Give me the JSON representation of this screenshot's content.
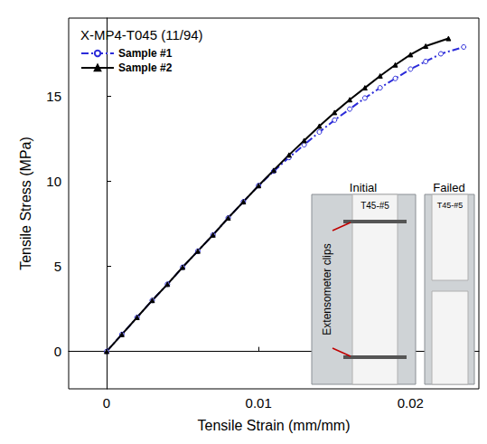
{
  "chart_data": {
    "type": "line",
    "title": "X-MP4-T045 (11/94)",
    "x_label": "Tensile Strain (mm/mm)",
    "y_label": "Tensile Stress (MPa)",
    "xlim": [
      -0.0025,
      0.0245
    ],
    "xticks": [
      0,
      0.01,
      0.02
    ],
    "ylim": [
      -2.2,
      19.6
    ],
    "yticks": [
      0,
      5,
      10,
      15
    ],
    "grid": false,
    "legend": "upper left",
    "annotations": [
      "Initial",
      "Failed",
      "Extensometer clips",
      "T45-#5",
      "T45-#5"
    ],
    "series": [
      {
        "name": "Sample #1",
        "color": "#2b2bd9",
        "marker": "circle",
        "line_style": "dashdot",
        "x": [
          0,
          0.001,
          0.002,
          0.003,
          0.004,
          0.005,
          0.006,
          0.007,
          0.008,
          0.009,
          0.01,
          0.011,
          0.012,
          0.013,
          0.014,
          0.015,
          0.016,
          0.017,
          0.018,
          0.019,
          0.02,
          0.021,
          0.022,
          0.0235
        ],
        "values": [
          0,
          1.0,
          2.0,
          3.0,
          3.95,
          4.95,
          5.9,
          6.85,
          7.85,
          8.8,
          9.75,
          10.6,
          11.4,
          12.15,
          12.9,
          13.6,
          14.25,
          14.9,
          15.5,
          16.05,
          16.6,
          17.05,
          17.5,
          17.9
        ]
      },
      {
        "name": "Sample #2",
        "color": "#000000",
        "marker": "triangle",
        "line_style": "solid",
        "x": [
          0,
          0.001,
          0.002,
          0.003,
          0.004,
          0.005,
          0.006,
          0.007,
          0.008,
          0.009,
          0.01,
          0.011,
          0.012,
          0.013,
          0.014,
          0.015,
          0.016,
          0.017,
          0.018,
          0.019,
          0.02,
          0.021,
          0.0225
        ],
        "values": [
          0,
          1.0,
          2.0,
          3.0,
          3.95,
          4.95,
          5.9,
          6.85,
          7.85,
          8.8,
          9.75,
          10.65,
          11.55,
          12.4,
          13.25,
          14.05,
          14.8,
          15.5,
          16.2,
          16.85,
          17.45,
          17.95,
          18.4
        ]
      }
    ]
  }
}
